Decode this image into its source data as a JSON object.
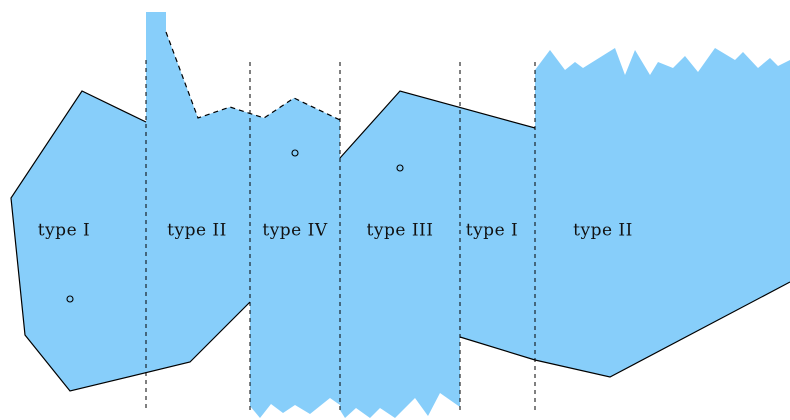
{
  "regions": [
    {
      "label": "type I"
    },
    {
      "label": "type II"
    },
    {
      "label": "type IV"
    },
    {
      "label": "type III"
    },
    {
      "label": "type I"
    },
    {
      "label": "type II"
    }
  ],
  "colors": {
    "fill": "#87CEFA",
    "line": "#000000"
  }
}
